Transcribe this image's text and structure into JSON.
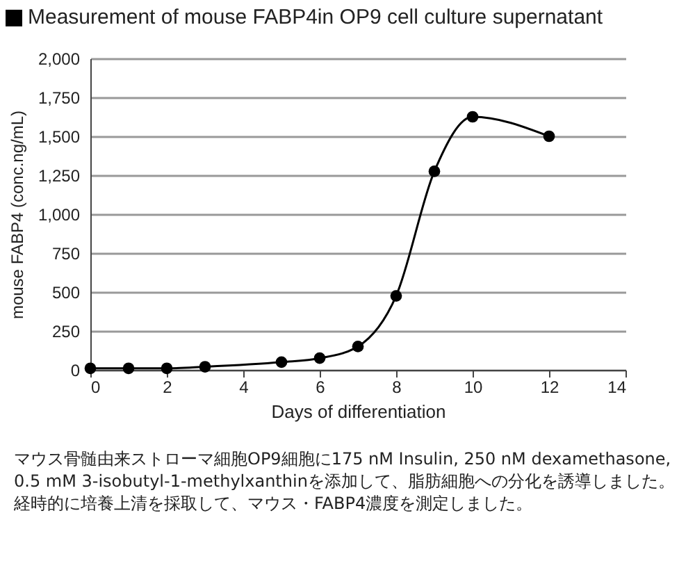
{
  "chart_data": {
    "type": "line",
    "title": "Measurement of mouse FABP4in OP9 cell culture supernatant",
    "xlabel": "Days of differentiation",
    "ylabel": "mouse FABP4 (conc.ng/mL)",
    "x": [
      0,
      1,
      2,
      3,
      5,
      6,
      7,
      8,
      9,
      10,
      12
    ],
    "series": [
      {
        "color": "#000000",
        "values": [
          10,
          10,
          10,
          20,
          50,
          75,
          150,
          475,
          1275,
          1625,
          1500
        ]
      }
    ],
    "xlim": [
      0,
      14
    ],
    "xticks": [
      0,
      2,
      4,
      6,
      8,
      10,
      12,
      14
    ],
    "ylim": [
      0,
      2000
    ],
    "yticks": [
      0,
      250,
      500,
      750,
      {
        "value": 1000,
        "label": "1,000"
      },
      {
        "value": 1250,
        "label": "1,250"
      },
      {
        "value": 1500,
        "label": "1,500"
      },
      {
        "value": 1750,
        "label": "1,750"
      },
      {
        "value": 2000,
        "label": "2,000"
      }
    ],
    "grid": "y",
    "marker": "circle",
    "line_style": "solid",
    "legend": false,
    "annotations": [
      "マウス骨髄由来ストローマ細胞OP9細胞に175 nM Insulin, 250 nM dexamethasone, 0.5 mM 3-isobutyl-1-methylxanthinを添加して、脂肪細胞への分化を誘導しました。経時的に培養上清を採取して、マウス・FABP4濃度を測定しました。"
    ]
  }
}
